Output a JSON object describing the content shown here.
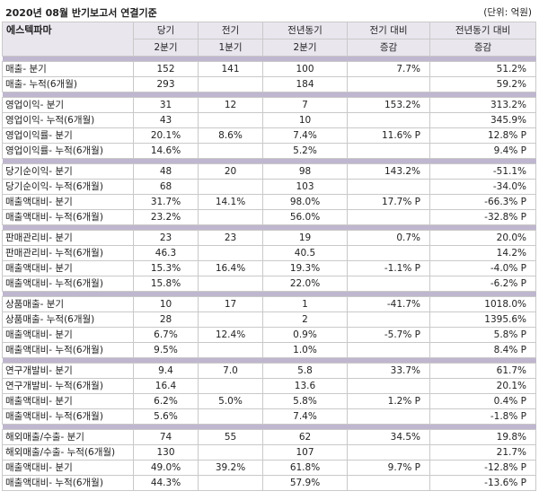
{
  "header": {
    "title": "2020년 08월 반기보고서 연결기준",
    "unit": "(단위: 억원)"
  },
  "table": {
    "company": "에스텍파마",
    "col1_a": "당기",
    "col1_b": "2분기",
    "col2_a": "전기",
    "col2_b": "1분기",
    "col3_a": "전년동기",
    "col3_b": "2분기",
    "col4_a": "전기 대비",
    "col4_b": "증감",
    "col5_a": "전년동기 대비",
    "col5_b": "증감",
    "groups": [
      [
        [
          "매출- 분기",
          "152",
          "141",
          "100",
          "7.7%",
          "51.2%"
        ],
        [
          "매출- 누적(6개월)",
          "293",
          "",
          "184",
          "",
          "59.2%"
        ]
      ],
      [
        [
          "영업이익- 분기",
          "31",
          "12",
          "7",
          "153.2%",
          "313.2%"
        ],
        [
          "영업이익- 누적(6개월)",
          "43",
          "",
          "10",
          "",
          "345.9%"
        ],
        [
          "영업이익률- 분기",
          "20.1%",
          "8.6%",
          "7.4%",
          "11.6% P",
          "12.8% P"
        ],
        [
          "영업이익률- 누적(6개월)",
          "14.6%",
          "",
          "5.2%",
          "",
          "9.4% P"
        ]
      ],
      [
        [
          "당기순이익- 분기",
          "48",
          "20",
          "98",
          "143.2%",
          "-51.1%"
        ],
        [
          "당기순이익- 누적(6개월)",
          "68",
          "",
          "103",
          "",
          "-34.0%"
        ],
        [
          "매출액대비- 분기",
          "31.7%",
          "14.1%",
          "98.0%",
          "17.7% P",
          "-66.3% P"
        ],
        [
          "매출액대비- 누적(6개월)",
          "23.2%",
          "",
          "56.0%",
          "",
          "-32.8% P"
        ]
      ],
      [
        [
          "판매관리비- 분기",
          "23",
          "23",
          "19",
          "0.7%",
          "20.0%"
        ],
        [
          "판매관리비- 누적(6개월)",
          "46.3",
          "",
          "40.5",
          "",
          "14.2%"
        ],
        [
          "매출액대비- 분기",
          "15.3%",
          "16.4%",
          "19.3%",
          "-1.1% P",
          "-4.0% P"
        ],
        [
          "매출액대비- 누적(6개월)",
          "15.8%",
          "",
          "22.0%",
          "",
          "-6.2% P"
        ]
      ],
      [
        [
          "상품매출- 분기",
          "10",
          "17",
          "1",
          "-41.7%",
          "1018.0%"
        ],
        [
          "상품매출- 누적(6개월)",
          "28",
          "",
          "2",
          "",
          "1395.6%"
        ],
        [
          "매출액대비- 분기",
          "6.7%",
          "12.4%",
          "0.9%",
          "-5.7% P",
          "5.8% P"
        ],
        [
          "매출액대비- 누적(6개월)",
          "9.5%",
          "",
          "1.0%",
          "",
          "8.4% P"
        ]
      ],
      [
        [
          "연구개발비- 분기",
          "9.4",
          "7.0",
          "5.8",
          "33.7%",
          "61.7%"
        ],
        [
          "연구개발비- 누적(6개월)",
          "16.4",
          "",
          "13.6",
          "",
          "20.1%"
        ],
        [
          "매출액대비- 분기",
          "6.2%",
          "5.0%",
          "5.8%",
          "1.2% P",
          "0.4% P"
        ],
        [
          "매출액대비- 누적(6개월)",
          "5.6%",
          "",
          "7.4%",
          "",
          "-1.8% P"
        ]
      ],
      [
        [
          "해외매출/수출- 분기",
          "74",
          "55",
          "62",
          "34.5%",
          "19.8%"
        ],
        [
          "해외매출/수출- 누적(6개월)",
          "130",
          "",
          "107",
          "",
          "21.7%"
        ],
        [
          "매출액대비- 분기",
          "49.0%",
          "39.2%",
          "61.8%",
          "9.7% P",
          "-12.8% P"
        ],
        [
          "매출액대비- 누적(6개월)",
          "44.3%",
          "",
          "57.9%",
          "",
          "-13.6% P"
        ]
      ]
    ]
  }
}
